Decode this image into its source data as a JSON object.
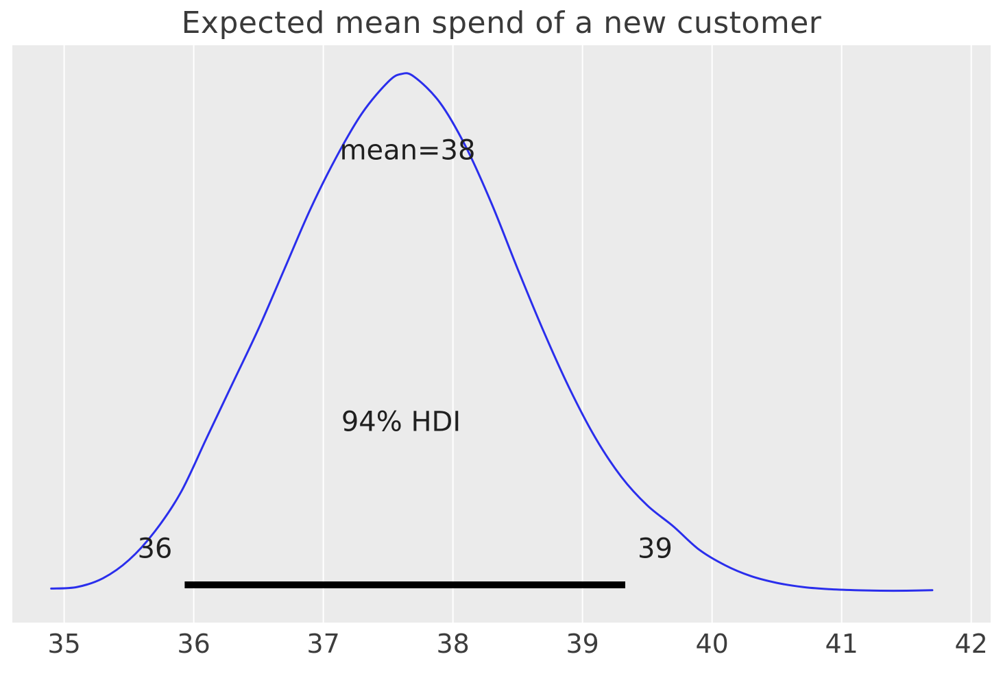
{
  "chart_data": {
    "type": "line",
    "subtype": "posterior-kde-density",
    "title": "Expected mean spend of a new customer",
    "xlabel": "",
    "ylabel": "",
    "xlim": [
      34.6,
      42.15
    ],
    "xticks": [
      35,
      36,
      37,
      38,
      39,
      40,
      41,
      42
    ],
    "grid": "vertical-white-on-gray",
    "legend": "none",
    "x": [
      34.9,
      35.1,
      35.3,
      35.5,
      35.7,
      35.9,
      36.1,
      36.3,
      36.5,
      36.7,
      36.9,
      37.1,
      37.3,
      37.5,
      37.6,
      37.7,
      37.9,
      38.1,
      38.3,
      38.5,
      38.7,
      38.9,
      39.1,
      39.3,
      39.5,
      39.7,
      39.9,
      40.1,
      40.3,
      40.5,
      40.7,
      40.9,
      41.1,
      41.3,
      41.5,
      41.7
    ],
    "density": [
      0.01,
      0.013,
      0.03,
      0.065,
      0.12,
      0.195,
      0.3,
      0.405,
      0.51,
      0.625,
      0.74,
      0.84,
      0.925,
      0.985,
      1.0,
      0.995,
      0.945,
      0.86,
      0.75,
      0.625,
      0.505,
      0.395,
      0.3,
      0.225,
      0.17,
      0.13,
      0.085,
      0.055,
      0.034,
      0.021,
      0.013,
      0.009,
      0.007,
      0.006,
      0.006,
      0.007
    ],
    "mean": {
      "value": 38,
      "label": "mean=38"
    },
    "hdi": {
      "prob": 0.94,
      "label": "94% HDI",
      "lower": 35.93,
      "upper": 39.33,
      "lower_label": "36",
      "upper_label": "39"
    },
    "label_positions": {
      "mean": {
        "x": 37.65,
        "y_frac": 0.836
      },
      "hdi": {
        "x": 37.6,
        "y_frac": 0.313
      },
      "lower": {
        "x": 35.7,
        "y_frac": 0.069
      },
      "upper": {
        "x": 39.56,
        "y_frac": 0.069
      }
    },
    "colors": {
      "curve": "#2a2eec",
      "hdi_bar": "#000000",
      "plot_bg": "#ebebeb",
      "grid": "#ffffff",
      "tick_text": "#3d3d3d",
      "annotation_text": "#1f1f1f"
    }
  }
}
